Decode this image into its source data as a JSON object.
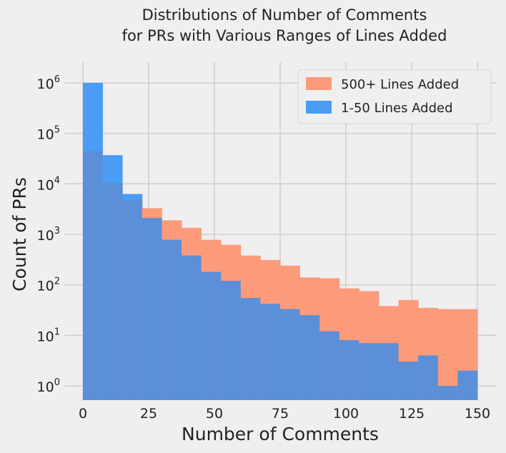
{
  "chart_data": {
    "type": "histogram",
    "title_lines": [
      "Distributions of Number of Comments",
      "for PRs with Various Ranges of Lines Added"
    ],
    "xlabel": "Number of Comments",
    "ylabel": "Count of PRs",
    "xlim": [
      0,
      150
    ],
    "ylim_log10": [
      0,
      6
    ],
    "y_scale": "log",
    "grid": true,
    "legend_position": "top-right",
    "bin_edges": [
      0,
      7.5,
      15,
      22.5,
      30,
      37.5,
      45,
      52.5,
      60,
      67.5,
      75,
      82.5,
      90,
      97.5,
      105,
      112.5,
      120,
      127.5,
      135,
      142.5,
      150
    ],
    "series": [
      {
        "name": "500+ Lines Added",
        "color": "#fc9a7a",
        "values": [
          45000,
          10500,
          4800,
          3300,
          1900,
          1350,
          780,
          620,
          380,
          310,
          240,
          140,
          135,
          85,
          75,
          38,
          50,
          35,
          33,
          33
        ]
      },
      {
        "name": "1-50 Lines Added",
        "color": "#4a9cf5",
        "values": [
          1000000,
          37000,
          6300,
          2100,
          780,
          380,
          180,
          120,
          55,
          42,
          33,
          25,
          12,
          8,
          7,
          7,
          3,
          4,
          1,
          2
        ]
      }
    ],
    "overlap_color": "#5b8fd8",
    "x_ticks": [
      0,
      25,
      50,
      75,
      100,
      125,
      150
    ],
    "x_tick_labels": [
      "0",
      "25",
      "50",
      "75",
      "100",
      "125",
      "150"
    ],
    "y_ticks": [
      0,
      1,
      2,
      3,
      4,
      5,
      6
    ],
    "y_tick_base": "10"
  }
}
